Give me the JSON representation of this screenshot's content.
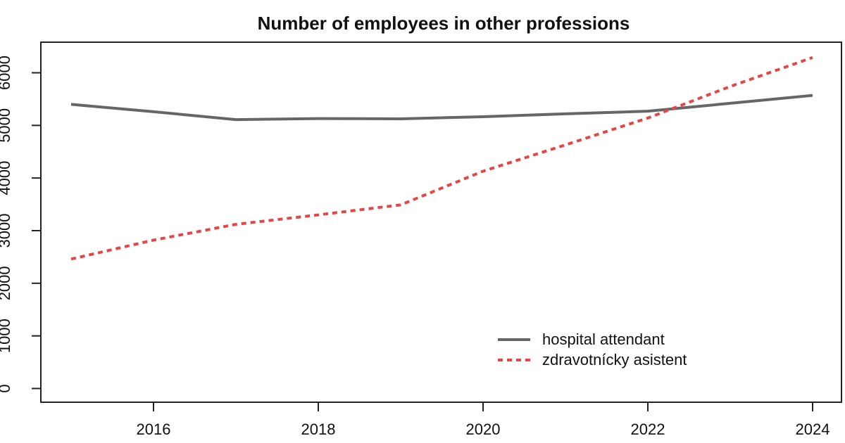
{
  "chart_data": {
    "type": "line",
    "title": "Number of employees in other professions",
    "xlabel": "",
    "ylabel": "",
    "x": [
      2015,
      2016,
      2017,
      2018,
      2019,
      2020,
      2021,
      2022,
      2023,
      2024
    ],
    "x_ticks": [
      2016,
      2018,
      2020,
      2022,
      2024
    ],
    "y_ticks": [
      0,
      1000,
      2000,
      3000,
      4000,
      5000,
      6000
    ],
    "xlim": [
      2015,
      2024
    ],
    "ylim": [
      0,
      6600
    ],
    "grid": false,
    "legend_position": "inside-bottom-right",
    "series": [
      {
        "name": "hospital attendant",
        "style": "solid",
        "color": "#666666",
        "values": [
          5400,
          5260,
          5110,
          5130,
          5125,
          5165,
          5220,
          5270,
          5420,
          5570
        ]
      },
      {
        "name": "zdravotnícky asistent",
        "style": "dashed",
        "color": "#e54545",
        "values": [
          2460,
          2820,
          3120,
          3300,
          3490,
          4130,
          4630,
          5140,
          5740,
          6290
        ]
      }
    ]
  }
}
